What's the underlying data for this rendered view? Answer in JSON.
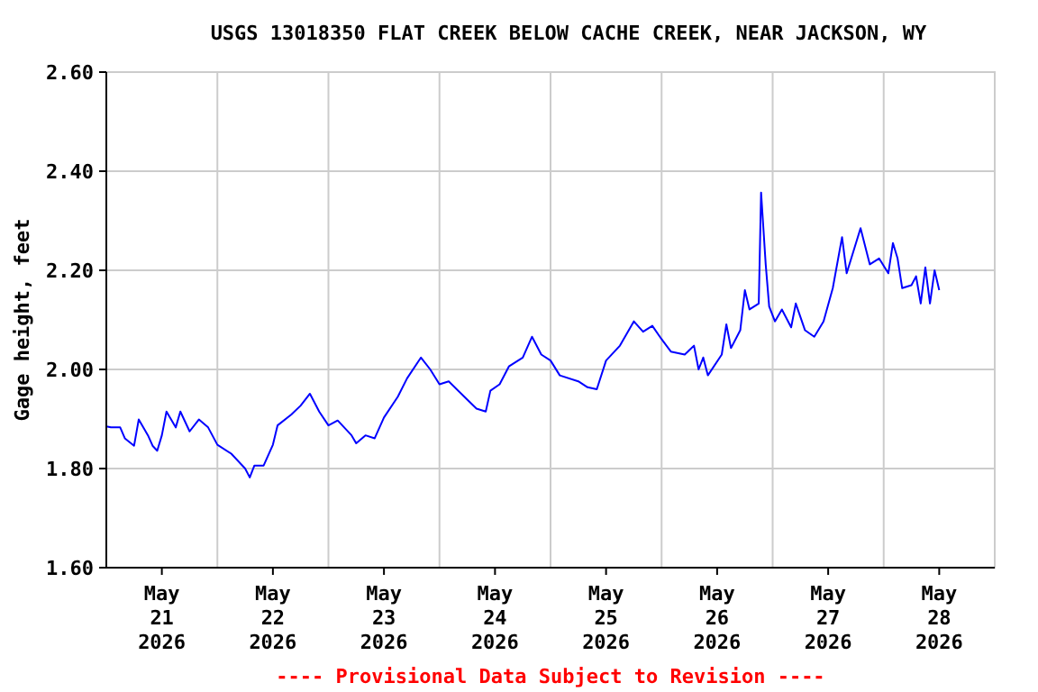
{
  "chart_data": {
    "type": "line",
    "title": "USGS 13018350 FLAT CREEK BELOW CACHE CREEK, NEAR JACKSON, WY",
    "ylabel": "Gage height, feet",
    "annotations": [
      "---- Provisional Data Subject to Revision ----"
    ],
    "xlim": [
      "2026-05-21T00:00",
      "2026-05-29T00:00"
    ],
    "xticks": [
      {
        "value": "2026-05-21T12:00",
        "label": "May\n21\n2026"
      },
      {
        "value": "2026-05-22T00:00",
        "label": null
      },
      {
        "value": "2026-05-22T12:00",
        "label": "May\n22\n2026"
      },
      {
        "value": "2026-05-23T00:00",
        "label": null
      },
      {
        "value": "2026-05-23T12:00",
        "label": "May\n23\n2026"
      },
      {
        "value": "2026-05-24T00:00",
        "label": null
      },
      {
        "value": "2026-05-24T12:00",
        "label": "May\n24\n2026"
      },
      {
        "value": "2026-05-25T00:00",
        "label": null
      },
      {
        "value": "2026-05-25T12:00",
        "label": "May\n25\n2026"
      },
      {
        "value": "2026-05-26T00:00",
        "label": null
      },
      {
        "value": "2026-05-26T12:00",
        "label": "May\n26\n2026"
      },
      {
        "value": "2026-05-27T00:00",
        "label": null
      },
      {
        "value": "2026-05-27T12:00",
        "label": "May\n27\n2026"
      },
      {
        "value": "2026-05-28T00:00",
        "label": null
      },
      {
        "value": "2026-05-28T12:00",
        "label": "May\n28\n2026"
      }
    ],
    "ylim": [
      1.6,
      2.6
    ],
    "yticks": [
      {
        "value": 1.6,
        "label": "1.60"
      },
      {
        "value": 1.8,
        "label": "1.80"
      },
      {
        "value": 2.0,
        "label": "2.00"
      },
      {
        "value": 2.2,
        "label": "2.20"
      },
      {
        "value": 2.4,
        "label": "2.40"
      },
      {
        "value": 2.6,
        "label": "2.60"
      }
    ],
    "grid": true,
    "series": [
      {
        "color": "#0000ff",
        "x": [
          "2026-05-21T00:00",
          "2026-05-21T01:00",
          "2026-05-21T03:00",
          "2026-05-21T04:00",
          "2026-05-21T06:00",
          "2026-05-21T07:00",
          "2026-05-21T09:00",
          "2026-05-21T10:00",
          "2026-05-21T11:00",
          "2026-05-21T12:00",
          "2026-05-21T13:00",
          "2026-05-21T15:00",
          "2026-05-21T16:00",
          "2026-05-21T18:00",
          "2026-05-21T20:00",
          "2026-05-21T22:00",
          "2026-05-22T00:00",
          "2026-05-22T03:00",
          "2026-05-22T06:00",
          "2026-05-22T07:00",
          "2026-05-22T08:00",
          "2026-05-22T10:00",
          "2026-05-22T12:00",
          "2026-05-22T13:00",
          "2026-05-22T16:00",
          "2026-05-22T18:00",
          "2026-05-22T20:00",
          "2026-05-22T22:00",
          "2026-05-23T00:00",
          "2026-05-23T02:00",
          "2026-05-23T05:00",
          "2026-05-23T06:00",
          "2026-05-23T08:00",
          "2026-05-23T10:00",
          "2026-05-23T12:00",
          "2026-05-23T15:00",
          "2026-05-23T17:00",
          "2026-05-23T20:00",
          "2026-05-23T22:00",
          "2026-05-24T00:00",
          "2026-05-24T02:00",
          "2026-05-24T06:00",
          "2026-05-24T08:00",
          "2026-05-24T10:00",
          "2026-05-24T11:00",
          "2026-05-24T13:00",
          "2026-05-24T15:00",
          "2026-05-24T18:00",
          "2026-05-24T20:00",
          "2026-05-24T22:00",
          "2026-05-25T00:00",
          "2026-05-25T02:00",
          "2026-05-25T06:00",
          "2026-05-25T08:00",
          "2026-05-25T10:00",
          "2026-05-25T12:00",
          "2026-05-25T15:00",
          "2026-05-25T18:00",
          "2026-05-25T20:00",
          "2026-05-25T22:00",
          "2026-05-26T00:00",
          "2026-05-26T02:00",
          "2026-05-26T05:00",
          "2026-05-26T07:00",
          "2026-05-26T08:00",
          "2026-05-26T09:00",
          "2026-05-26T10:00",
          "2026-05-26T13:00",
          "2026-05-26T14:00",
          "2026-05-26T15:00",
          "2026-05-26T17:00",
          "2026-05-26T18:00",
          "2026-05-26T19:00",
          "2026-05-26T21:00",
          "2026-05-26T21:30",
          "2026-05-26T22:00",
          "2026-05-26T22:30",
          "2026-05-26T23:15",
          "2026-05-27T00:30",
          "2026-05-27T02:00",
          "2026-05-27T04:00",
          "2026-05-27T05:00",
          "2026-05-27T07:00",
          "2026-05-27T09:00",
          "2026-05-27T11:00",
          "2026-05-27T13:00",
          "2026-05-27T15:00",
          "2026-05-27T16:00",
          "2026-05-27T19:00",
          "2026-05-27T21:00",
          "2026-05-27T23:00",
          "2026-05-28T01:00",
          "2026-05-28T02:00",
          "2026-05-28T03:00",
          "2026-05-28T04:00",
          "2026-05-28T06:00",
          "2026-05-28T07:00",
          "2026-05-28T08:00",
          "2026-05-28T09:00",
          "2026-05-28T10:00",
          "2026-05-28T11:00",
          "2026-05-28T12:00"
        ],
        "values": [
          1.885,
          1.883,
          1.883,
          1.861,
          1.846,
          1.899,
          1.867,
          1.846,
          1.836,
          1.867,
          1.915,
          1.883,
          1.915,
          1.875,
          1.899,
          1.883,
          1.848,
          1.83,
          1.8,
          1.782,
          1.806,
          1.806,
          1.848,
          1.887,
          1.909,
          1.927,
          1.951,
          1.915,
          1.887,
          1.897,
          1.867,
          1.851,
          1.867,
          1.861,
          1.903,
          1.945,
          1.982,
          2.024,
          2.0,
          1.97,
          1.976,
          1.939,
          1.921,
          1.915,
          1.957,
          1.97,
          2.006,
          2.024,
          2.066,
          2.03,
          2.018,
          1.988,
          1.976,
          1.964,
          1.96,
          2.018,
          2.048,
          2.097,
          2.076,
          2.088,
          2.061,
          2.036,
          2.03,
          2.048,
          2.0,
          2.024,
          1.988,
          2.03,
          2.091,
          2.043,
          2.079,
          2.16,
          2.121,
          2.133,
          2.357,
          2.285,
          2.212,
          2.127,
          2.097,
          2.121,
          2.085,
          2.133,
          2.079,
          2.066,
          2.097,
          2.164,
          2.267,
          2.194,
          2.285,
          2.212,
          2.224,
          2.194,
          2.255,
          2.224,
          2.164,
          2.17,
          2.188,
          2.133,
          2.206,
          2.133,
          2.2,
          2.16
        ]
      }
    ]
  }
}
